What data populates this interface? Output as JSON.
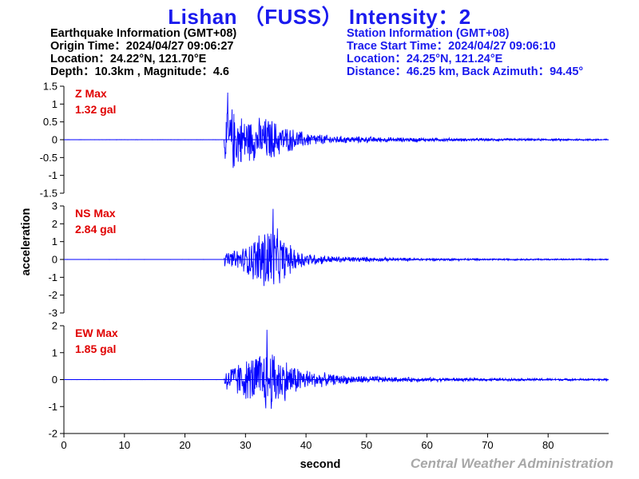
{
  "title": "Lishan （FUSS） Intensity：2",
  "earthquake_info": {
    "header": "Earthquake Information  (GMT+08)",
    "origin_time": "Origin Time：2024/04/27 09:06:27",
    "location": "Location：24.22°N, 121.70°E",
    "depth_magnitude": "Depth：10.3km , Magnitude：4.6"
  },
  "station_info": {
    "header": "Station Information  (GMT+08)",
    "trace_start": "Trace Start Time：2024/04/27 09:06:10",
    "location": "Location：24.25°N, 121.24°E",
    "distance": "Distance：46.25 km, Back Azimuth：94.45°"
  },
  "credit": "Central Weather Administration",
  "colors": {
    "title": "#1a1aee",
    "trace": "#0000ff",
    "panel_label": "#e00000",
    "credit": "#a8a8a8"
  },
  "chart_data": {
    "type": "line",
    "xlabel": "second",
    "ylabel": "acceleration",
    "xlim": [
      0,
      90
    ],
    "xticks": [
      0,
      10,
      20,
      30,
      40,
      50,
      60,
      70,
      80
    ],
    "panels": [
      {
        "name": "Z",
        "label_line1": "Z Max",
        "label_line2": "1.32 gal",
        "max_gal": 1.32,
        "ylim": [
          -1.5,
          1.5
        ],
        "yticks": [
          -1.5,
          -1,
          -0.5,
          0,
          0.5,
          1,
          1.5
        ],
        "ytick_labels": [
          "-1.5",
          "-1",
          "-0.5",
          "0",
          "0.5",
          "1",
          "1.5"
        ],
        "p_arrival_s": 26.5,
        "peak_time_s": 27.0,
        "peak_value": 1.32,
        "envelope": [
          [
            26.5,
            0.6
          ],
          [
            27.5,
            1.05
          ],
          [
            29,
            0.8
          ],
          [
            31,
            0.65
          ],
          [
            34,
            0.7
          ],
          [
            36,
            0.45
          ],
          [
            40,
            0.22
          ],
          [
            45,
            0.12
          ],
          [
            55,
            0.07
          ],
          [
            70,
            0.04
          ],
          [
            90,
            0.03
          ]
        ]
      },
      {
        "name": "NS",
        "label_line1": "NS Max",
        "label_line2": "2.84 gal",
        "max_gal": 2.84,
        "ylim": [
          -3,
          3
        ],
        "yticks": [
          -3,
          -2,
          -1,
          0,
          1,
          2,
          3
        ],
        "ytick_labels": [
          "-3",
          "-2",
          "-1",
          "0",
          "1",
          "2",
          "3"
        ],
        "p_arrival_s": 26.5,
        "peak_time_s": 34.5,
        "peak_value": 2.84,
        "envelope": [
          [
            26.5,
            0.4
          ],
          [
            28,
            0.55
          ],
          [
            30,
            0.85
          ],
          [
            32,
            1.6
          ],
          [
            34,
            2.5
          ],
          [
            36,
            1.4
          ],
          [
            38,
            0.7
          ],
          [
            41,
            0.35
          ],
          [
            45,
            0.2
          ],
          [
            55,
            0.1
          ],
          [
            70,
            0.06
          ],
          [
            90,
            0.04
          ]
        ]
      },
      {
        "name": "EW",
        "label_line1": "EW Max",
        "label_line2": "1.85 gal",
        "max_gal": 1.85,
        "ylim": [
          -2,
          2
        ],
        "yticks": [
          -2,
          -1,
          0,
          1,
          2
        ],
        "ytick_labels": [
          "-2",
          "-1",
          "0",
          "1",
          "2"
        ],
        "p_arrival_s": 26.5,
        "peak_time_s": 33.5,
        "peak_value": 1.85,
        "envelope": [
          [
            26.5,
            0.4
          ],
          [
            28,
            0.65
          ],
          [
            30,
            0.8
          ],
          [
            32,
            1.1
          ],
          [
            34,
            1.4
          ],
          [
            36,
            0.95
          ],
          [
            38,
            0.6
          ],
          [
            41,
            0.35
          ],
          [
            45,
            0.2
          ],
          [
            55,
            0.1
          ],
          [
            70,
            0.06
          ],
          [
            90,
            0.04
          ]
        ]
      }
    ]
  }
}
